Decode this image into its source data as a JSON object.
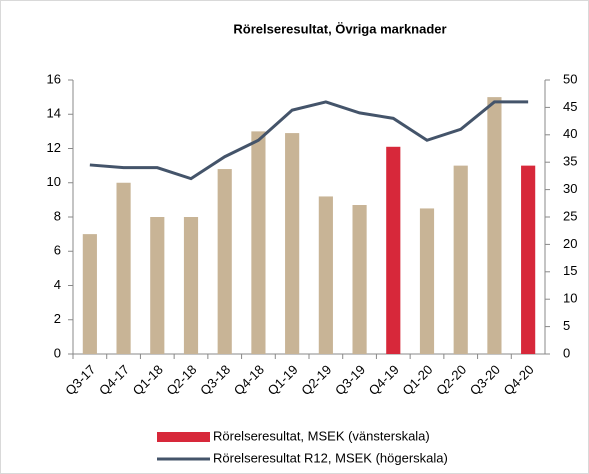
{
  "chart_data": {
    "type": "bar",
    "title": "Rörelseresultat, Övriga marknader",
    "categories": [
      "Q3-17",
      "Q4-17",
      "Q1-18",
      "Q2-18",
      "Q3-18",
      "Q4-18",
      "Q1-19",
      "Q2-19",
      "Q3-19",
      "Q4-19",
      "Q1-20",
      "Q2-20",
      "Q3-20",
      "Q4-20"
    ],
    "series": [
      {
        "name": "Rörelseresultat, MSEK (vänsterskala)",
        "type": "bar",
        "color": "#d7283a",
        "colors": [
          "#c8b496",
          "#c8b496",
          "#c8b496",
          "#c8b496",
          "#c8b496",
          "#c8b496",
          "#c8b496",
          "#c8b496",
          "#c8b496",
          "#d7283a",
          "#c8b496",
          "#c8b496",
          "#c8b496",
          "#d7283a"
        ],
        "values": [
          7.0,
          10.0,
          8.0,
          8.0,
          10.8,
          13.0,
          12.9,
          9.2,
          8.7,
          12.1,
          8.5,
          11.0,
          15.0,
          11.0
        ]
      },
      {
        "name": "Rörelseresultat R12, MSEK (högerskala)",
        "type": "line",
        "axis": "y2",
        "color": "#44546a",
        "values": [
          34.5,
          34,
          34,
          32,
          36,
          39,
          44.5,
          46,
          44,
          43,
          39,
          41,
          46,
          46
        ]
      }
    ],
    "ylim": [
      0,
      16
    ],
    "yticks": [
      0,
      2,
      4,
      6,
      8,
      10,
      12,
      14,
      16
    ],
    "y2lim": [
      0,
      50
    ],
    "y2ticks": [
      0,
      5,
      10,
      15,
      20,
      25,
      30,
      35,
      40,
      45,
      50
    ],
    "legend": "bottom"
  }
}
